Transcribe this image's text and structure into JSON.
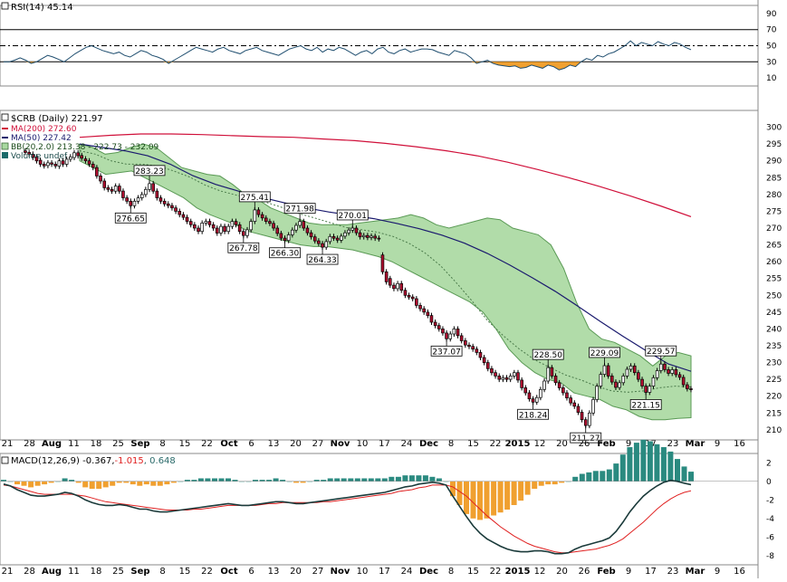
{
  "chart_data": {
    "type": "stock_chart",
    "symbol_label": "$CRB (Daily)",
    "last_value": "221.97",
    "price_axis": {
      "ylim": [
        207,
        305
      ],
      "ticks": [
        "300",
        "295",
        "290",
        "285",
        "280",
        "275",
        "270",
        "265",
        "260",
        "255",
        "250",
        "245",
        "240",
        "235",
        "230",
        "225",
        "220",
        "215",
        "210"
      ]
    },
    "x_axis_labels": [
      "21",
      "28",
      "Aug",
      "11",
      "18",
      "25",
      "Sep",
      "8",
      "15",
      "22",
      "Oct",
      "6",
      "13",
      "20",
      "27",
      "Nov",
      "10",
      "17",
      "24",
      "Dec",
      "8",
      "15",
      "22",
      "2015",
      "12",
      "20",
      "26",
      "Feb",
      "9",
      "17",
      "23",
      "Mar",
      "9",
      "16"
    ],
    "bold_month_labels": [
      "Aug",
      "Sep",
      "Oct",
      "Nov",
      "Dec",
      "2015",
      "Feb",
      "Mar"
    ],
    "rsi": {
      "label": "RSI(14)",
      "value": "45.14",
      "ticks": [
        "90",
        "70",
        "50",
        "30",
        "10"
      ],
      "overbought": 70,
      "oversold": 30,
      "values": [
        30,
        30,
        32,
        35,
        32,
        28,
        30,
        34,
        38,
        36,
        33,
        30,
        35,
        40,
        44,
        48,
        50,
        47,
        44,
        42,
        40,
        42,
        38,
        36,
        40,
        44,
        42,
        38,
        36,
        33,
        28,
        32,
        36,
        40,
        44,
        48,
        46,
        44,
        42,
        46,
        48,
        44,
        42,
        40,
        44,
        46,
        48,
        44,
        42,
        40,
        38,
        42,
        46,
        48,
        50,
        46,
        44,
        48,
        42,
        46,
        44,
        48,
        46,
        42,
        38,
        42,
        44,
        40,
        46,
        48,
        42,
        40,
        44,
        46,
        42,
        44,
        46,
        46,
        45,
        42,
        40,
        38,
        44,
        42,
        40,
        35,
        28,
        30,
        32,
        28,
        26,
        25,
        24,
        25,
        22,
        23,
        26,
        24,
        22,
        26,
        24,
        20,
        22,
        26,
        24,
        30,
        34,
        32,
        38,
        36,
        40,
        42,
        46,
        50,
        56,
        50,
        54,
        52,
        50,
        55,
        52,
        50,
        54,
        52,
        48,
        45
      ]
    },
    "price": {
      "ma200_label": "MA(200) 272.60",
      "ma50_label": "MA(50) 227.42",
      "bb_label": "BB(20,2.0) 213.38 - 222.73 - 232.09",
      "volume_label": "Volume undef",
      "ma200": [
        297,
        297.6,
        298,
        298,
        297.8,
        297.5,
        297.2,
        297,
        296.5,
        296,
        295.2,
        294.2,
        293,
        291.5,
        289.6,
        287.4,
        285,
        282.4,
        279.6,
        276.6,
        273.4
      ],
      "ma50": [
        295,
        294,
        293,
        291.5,
        289,
        285.6,
        283,
        281,
        279.2,
        277.6,
        276,
        274.8,
        273.8,
        272.8,
        271.4,
        269.8,
        267.9,
        265.5,
        262.5,
        259,
        255.2,
        251.2,
        246.8,
        242.2,
        237.8,
        233.6,
        229.6,
        227.4
      ],
      "bb_upper": [
        295,
        294,
        292,
        292.5,
        294,
        295,
        294,
        291,
        288,
        287,
        286,
        285.5,
        283,
        280,
        278.5,
        276,
        274.5,
        273,
        271.5,
        271,
        271,
        271,
        271.5,
        272,
        272.5,
        273,
        274,
        273,
        271,
        270,
        271,
        272,
        273,
        272.5,
        270,
        269,
        268,
        265,
        258,
        248,
        240,
        237,
        236,
        234,
        232,
        229,
        232,
        233,
        232
      ],
      "bb_lower": [
        290,
        288,
        286,
        286.5,
        287,
        285,
        283,
        281,
        279,
        276,
        274,
        272.5,
        271,
        269,
        268,
        267,
        266,
        265,
        264.5,
        264.5,
        264,
        263.5,
        262.5,
        261.5,
        260,
        258,
        256,
        254,
        252,
        250,
        248,
        245,
        240,
        234,
        230,
        227,
        225,
        224,
        221,
        220,
        219,
        217,
        216,
        214,
        213,
        213,
        213.4,
        213.6
      ],
      "bb_mid": [
        293,
        292,
        290,
        289,
        289,
        288.5,
        287,
        285.2,
        282.8,
        281,
        279.8,
        278.8,
        277.5,
        276,
        274.3,
        273,
        271.6,
        270.2,
        269.5,
        268.8,
        267.5,
        265.5,
        262.7,
        258.9,
        253.9,
        248.5,
        242.6,
        238.1,
        234.2,
        230.9,
        228.5,
        226.3,
        224.8,
        222.9,
        221.5,
        221.2,
        221.6,
        222.5,
        223,
        222.7
      ],
      "candles": [
        [
          293,
          292.5
        ],
        [
          292.5,
          292
        ],
        [
          292,
          291
        ],
        [
          291.2,
          290
        ],
        [
          290.2,
          289
        ],
        [
          289,
          288.5
        ],
        [
          288.6,
          289.4
        ],
        [
          289.4,
          289
        ],
        [
          289,
          288.5
        ],
        [
          288.4,
          290
        ],
        [
          290,
          289
        ],
        [
          289,
          290.5
        ],
        [
          290.5,
          291.2
        ],
        [
          291,
          292.4
        ],
        [
          292.4,
          291.5
        ],
        [
          291.6,
          290.8
        ],
        [
          290.6,
          290
        ],
        [
          290,
          289
        ],
        [
          289,
          288
        ],
        [
          288,
          285.5
        ],
        [
          285.5,
          284
        ],
        [
          284,
          282
        ],
        [
          282,
          281.5
        ],
        [
          281.5,
          281
        ],
        [
          281,
          282.5
        ],
        [
          282.5,
          281
        ],
        [
          281,
          279
        ],
        [
          279,
          278
        ],
        [
          278,
          276.65
        ],
        [
          276.65,
          278
        ],
        [
          278,
          279
        ],
        [
          279,
          280
        ],
        [
          280,
          281.5
        ],
        [
          281.5,
          283.23
        ],
        [
          283.23,
          281
        ],
        [
          281,
          279
        ],
        [
          279,
          278
        ],
        [
          278,
          277.2
        ],
        [
          277.2,
          276.7
        ],
        [
          276.7,
          276
        ],
        [
          276,
          275
        ],
        [
          275,
          274
        ],
        [
          274,
          273.2
        ],
        [
          273.2,
          272
        ],
        [
          272,
          271
        ],
        [
          271,
          270
        ],
        [
          270,
          269
        ],
        [
          269,
          271.5
        ],
        [
          271.5,
          272
        ],
        [
          272,
          271
        ],
        [
          271,
          270
        ],
        [
          270,
          268.5
        ],
        [
          268.5,
          270.5
        ],
        [
          270.5,
          269
        ],
        [
          269,
          270.5
        ],
        [
          270.5,
          272
        ],
        [
          272,
          271
        ],
        [
          271,
          269
        ],
        [
          269,
          267.78
        ],
        [
          267.78,
          269.5
        ],
        [
          269.5,
          272
        ],
        [
          272,
          275.41
        ],
        [
          275.41,
          274
        ],
        [
          274,
          273
        ],
        [
          273,
          272
        ],
        [
          272,
          271.4
        ],
        [
          271.4,
          270
        ],
        [
          270,
          268.4
        ],
        [
          268.4,
          267
        ],
        [
          267,
          266.3
        ],
        [
          266.3,
          268
        ],
        [
          268,
          269.4
        ],
        [
          269.4,
          270.8
        ],
        [
          270.8,
          271.98
        ],
        [
          271.98,
          270
        ],
        [
          270,
          268.6
        ],
        [
          268.6,
          267.4
        ],
        [
          267.4,
          266.2
        ],
        [
          266.2,
          265.4
        ],
        [
          265.4,
          264.33
        ],
        [
          264.33,
          266
        ],
        [
          266,
          267.5
        ],
        [
          267.5,
          267
        ],
        [
          267,
          266.4
        ],
        [
          266.4,
          267.6
        ],
        [
          267.6,
          268.6
        ],
        [
          268.6,
          269.4
        ],
        [
          269.4,
          270.01
        ],
        [
          270.01,
          268.6
        ],
        [
          268.6,
          267.4
        ],
        [
          267.4,
          267.8
        ],
        [
          267.8,
          267.2
        ],
        [
          267.2,
          267.6
        ],
        [
          267.6,
          267
        ],
        [
          267,
          266.8
        ],
        [
          262,
          257
        ],
        [
          257,
          254
        ],
        [
          255,
          253
        ],
        [
          253,
          252
        ],
        [
          252,
          253.5
        ],
        [
          253.5,
          251.5
        ],
        [
          251.5,
          250
        ],
        [
          250,
          249.5
        ],
        [
          249.5,
          249
        ],
        [
          249,
          247
        ],
        [
          247,
          246
        ],
        [
          246,
          245
        ],
        [
          245,
          244
        ],
        [
          244,
          242
        ],
        [
          242,
          241
        ],
        [
          241,
          240
        ],
        [
          240,
          238.8
        ],
        [
          238.8,
          237.07
        ],
        [
          237.07,
          238.5
        ],
        [
          238.5,
          240
        ],
        [
          240,
          238
        ],
        [
          238,
          236.5
        ],
        [
          236.5,
          235.2
        ],
        [
          235.2,
          234.8
        ],
        [
          234.8,
          234
        ],
        [
          234,
          233
        ],
        [
          233,
          231.5
        ],
        [
          231.5,
          230
        ],
        [
          230,
          228.2
        ],
        [
          228.2,
          227
        ],
        [
          227,
          226
        ],
        [
          226,
          225
        ],
        [
          225,
          225.5
        ],
        [
          225.5,
          225
        ],
        [
          225,
          226
        ],
        [
          226,
          227
        ],
        [
          227,
          224.8
        ],
        [
          224.8,
          222.5
        ],
        [
          222.5,
          221
        ],
        [
          221,
          219.2
        ],
        [
          219.2,
          218.24
        ],
        [
          218.24,
          219.6
        ],
        [
          219.6,
          222
        ],
        [
          222,
          224.5
        ],
        [
          224.5,
          228.5
        ],
        [
          228.5,
          226
        ],
        [
          226,
          224
        ],
        [
          224,
          222.5
        ],
        [
          222.5,
          221
        ],
        [
          221,
          219.5
        ],
        [
          219.5,
          218
        ],
        [
          218,
          217
        ],
        [
          217,
          215.2
        ],
        [
          215.2,
          213
        ],
        [
          213,
          211.27
        ],
        [
          211.27,
          215
        ],
        [
          215,
          219
        ],
        [
          219,
          223
        ],
        [
          223,
          226.5
        ],
        [
          226.5,
          229.09
        ],
        [
          229.09,
          226
        ],
        [
          226,
          224.2
        ],
        [
          224.2,
          222.6
        ],
        [
          222.6,
          224
        ],
        [
          224,
          226
        ],
        [
          226,
          228
        ],
        [
          228,
          229
        ],
        [
          229,
          227
        ],
        [
          227,
          225
        ],
        [
          225,
          223
        ],
        [
          223,
          221.15
        ],
        [
          221.15,
          223
        ],
        [
          223,
          225.5
        ],
        [
          225.5,
          227.6
        ],
        [
          227.6,
          229.57
        ],
        [
          229.57,
          227.9
        ],
        [
          227.9,
          226.8
        ],
        [
          226.8,
          227.9
        ],
        [
          227.9,
          226.4
        ],
        [
          226.4,
          225.6
        ],
        [
          225.6,
          223.4
        ],
        [
          223.4,
          222.2
        ],
        [
          222.2,
          221.97
        ]
      ],
      "annotations": [
        {
          "label": "276.65",
          "value": 276.65,
          "pos": "below"
        },
        {
          "label": "283.23",
          "value": 283.23,
          "pos": "above"
        },
        {
          "label": "267.78",
          "value": 267.78,
          "pos": "below"
        },
        {
          "label": "275.41",
          "value": 275.41,
          "pos": "above"
        },
        {
          "label": "266.30",
          "value": 266.3,
          "pos": "below"
        },
        {
          "label": "271.98",
          "value": 271.98,
          "pos": "above"
        },
        {
          "label": "264.33",
          "value": 264.33,
          "pos": "below"
        },
        {
          "label": "270.01",
          "value": 270.01,
          "pos": "above"
        },
        {
          "label": "237.07",
          "value": 237.07,
          "pos": "below"
        },
        {
          "label": "228.50",
          "value": 228.5,
          "pos": "above"
        },
        {
          "label": "218.24",
          "value": 218.24,
          "pos": "below"
        },
        {
          "label": "229.09",
          "value": 229.09,
          "pos": "above"
        },
        {
          "label": "211.27",
          "value": 211.27,
          "pos": "below"
        },
        {
          "label": "229.57",
          "value": 229.57,
          "pos": "above"
        },
        {
          "label": "221.15",
          "value": 221.15,
          "pos": "below"
        }
      ]
    },
    "macd": {
      "label": "MACD(12,26,9)",
      "macd_value": "-0.367",
      "signal_value": "-1.015",
      "hist_value": "0.648",
      "ylim": [
        -9,
        3
      ],
      "ticks": [
        "2",
        "0",
        "-2",
        "-4",
        "-6",
        "-8"
      ],
      "macd_line": [
        -0.3,
        -0.5,
        -0.9,
        -1.2,
        -1.5,
        -1.6,
        -1.6,
        -1.5,
        -1.4,
        -1.2,
        -1.3,
        -1.6,
        -2.0,
        -2.3,
        -2.5,
        -2.6,
        -2.6,
        -2.5,
        -2.6,
        -2.8,
        -3.0,
        -3.0,
        -3.2,
        -3.3,
        -3.3,
        -3.2,
        -3.1,
        -3.0,
        -2.9,
        -2.8,
        -2.7,
        -2.6,
        -2.5,
        -2.4,
        -2.5,
        -2.6,
        -2.6,
        -2.5,
        -2.4,
        -2.3,
        -2.2,
        -2.2,
        -2.3,
        -2.4,
        -2.4,
        -2.3,
        -2.2,
        -2.1,
        -2.0,
        -1.9,
        -1.8,
        -1.7,
        -1.6,
        -1.5,
        -1.4,
        -1.3,
        -1.2,
        -1.0,
        -0.8,
        -0.6,
        -0.5,
        -0.3,
        -0.2,
        -0.1,
        -0.2,
        -0.4,
        -1.6,
        -2.7,
        -3.8,
        -4.8,
        -5.6,
        -6.2,
        -6.6,
        -7.0,
        -7.3,
        -7.5,
        -7.6,
        -7.6,
        -7.5,
        -7.5,
        -7.6,
        -7.8,
        -7.8,
        -7.7,
        -7.3,
        -7.0,
        -6.8,
        -6.6,
        -6.4,
        -6.1,
        -5.4,
        -4.4,
        -3.3,
        -2.4,
        -1.6,
        -1.0,
        -0.5,
        -0.1,
        0.1,
        0.0,
        -0.2,
        -0.367
      ],
      "signal_line": [
        -0.4,
        -0.5,
        -0.7,
        -0.9,
        -1.1,
        -1.3,
        -1.4,
        -1.4,
        -1.4,
        -1.4,
        -1.4,
        -1.5,
        -1.6,
        -1.8,
        -2.0,
        -2.2,
        -2.3,
        -2.4,
        -2.5,
        -2.6,
        -2.7,
        -2.8,
        -2.9,
        -3.0,
        -3.1,
        -3.1,
        -3.1,
        -3.1,
        -3.0,
        -3.0,
        -2.9,
        -2.8,
        -2.7,
        -2.6,
        -2.6,
        -2.6,
        -2.6,
        -2.6,
        -2.5,
        -2.4,
        -2.4,
        -2.3,
        -2.3,
        -2.3,
        -2.3,
        -2.3,
        -2.3,
        -2.2,
        -2.2,
        -2.1,
        -2.0,
        -1.9,
        -1.8,
        -1.7,
        -1.6,
        -1.5,
        -1.4,
        -1.3,
        -1.1,
        -1.0,
        -0.9,
        -0.7,
        -0.6,
        -0.4,
        -0.4,
        -0.4,
        -0.6,
        -1.1,
        -1.6,
        -2.3,
        -3.0,
        -3.7,
        -4.3,
        -4.9,
        -5.4,
        -5.9,
        -6.3,
        -6.7,
        -7.0,
        -7.2,
        -7.4,
        -7.6,
        -7.7,
        -7.7,
        -7.6,
        -7.5,
        -7.4,
        -7.3,
        -7.1,
        -6.9,
        -6.6,
        -6.2,
        -5.6,
        -5.0,
        -4.4,
        -3.7,
        -3.0,
        -2.4,
        -1.9,
        -1.5,
        -1.2,
        -1.015
      ]
    }
  }
}
